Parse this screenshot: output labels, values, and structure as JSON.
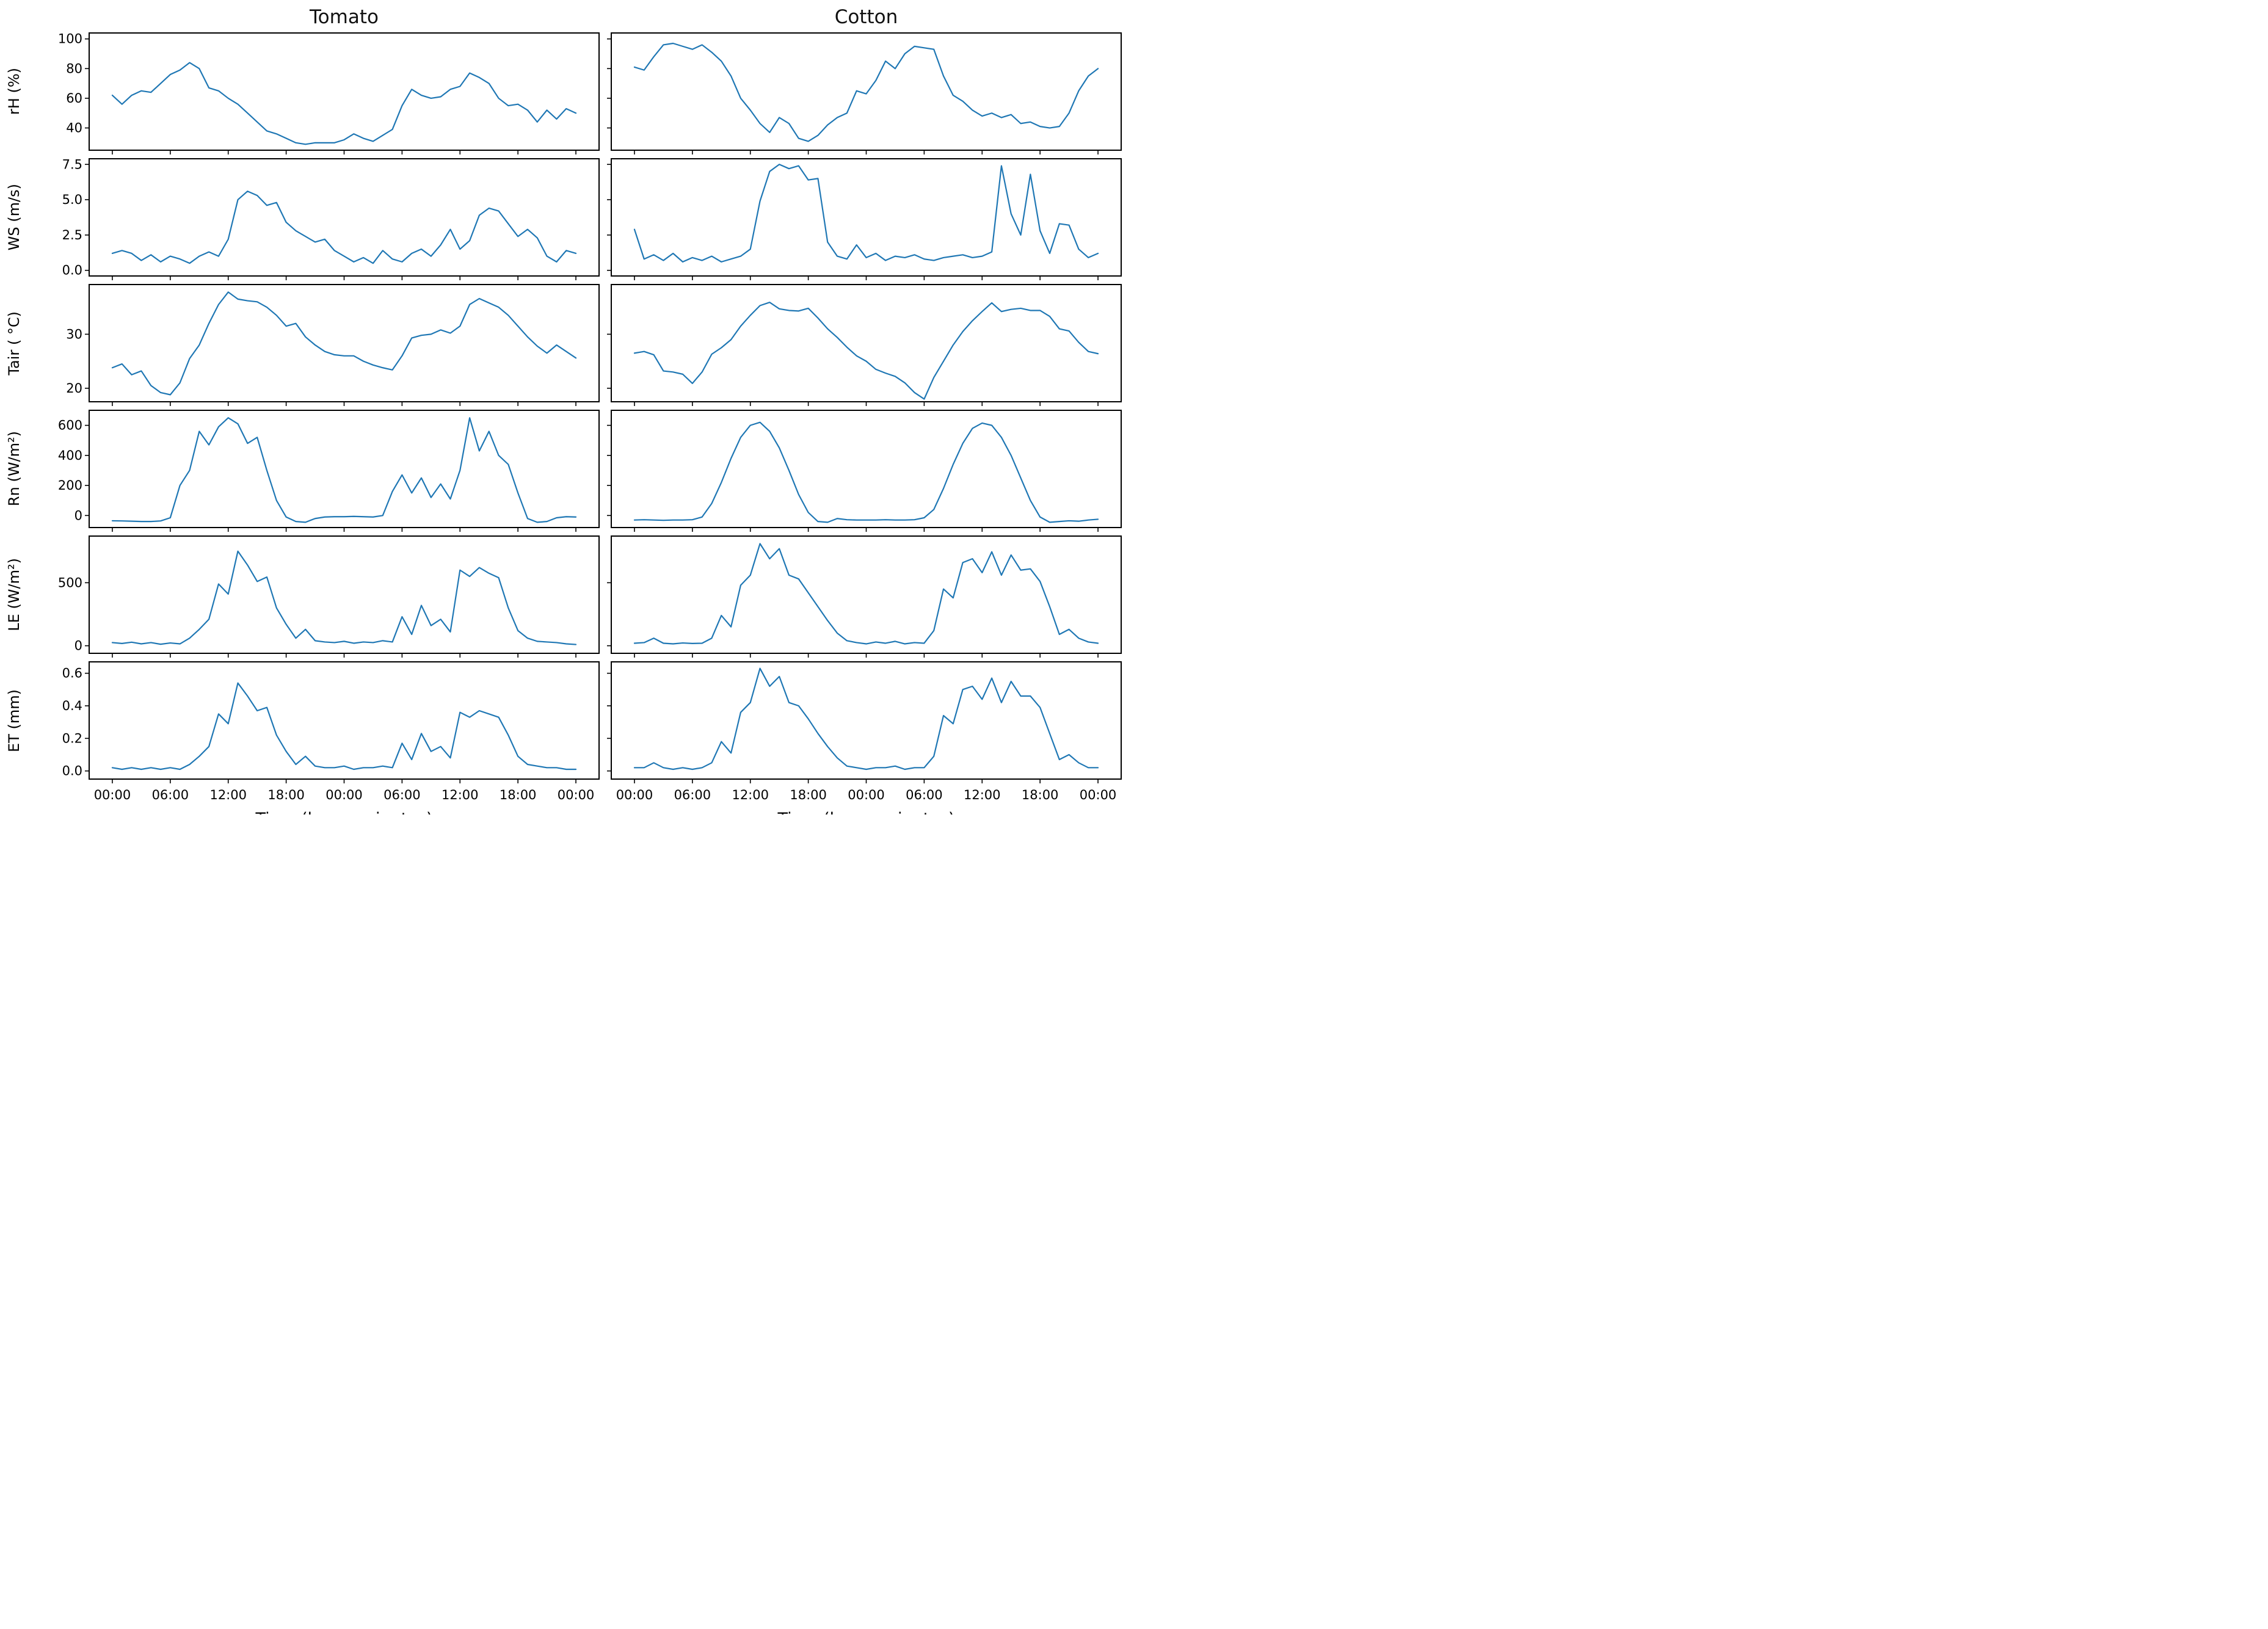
{
  "figure": {
    "column_titles": [
      "Tomato",
      "Cotton"
    ],
    "xlabel": "Time (hours:minutes)"
  },
  "chart_data": {
    "type": "line",
    "title": "",
    "columns": [
      "Tomato",
      "Cotton"
    ],
    "xlabel": "Time (hours:minutes)",
    "x_unit": "hours since first midnight (two consecutive days, hourly samples)",
    "x_start": 0,
    "x_step": 1,
    "n_points": 49,
    "x_tick_hours": [
      0,
      6,
      12,
      18,
      24,
      30,
      36,
      42,
      48
    ],
    "x_tick_labels": [
      "00:00",
      "06:00",
      "12:00",
      "18:00",
      "00:00",
      "06:00",
      "12:00",
      "18:00",
      "00:00"
    ],
    "line_color": "#1f77b4",
    "axes_color": "#000000",
    "grid": false,
    "legend": "none",
    "rows": [
      {
        "key": "rH",
        "ylabel": "rH (%)",
        "ylim": [
          25,
          104
        ],
        "yticks": [
          40,
          60,
          80,
          100
        ],
        "ytick_labels": [
          "40",
          "60",
          "80",
          "100"
        ],
        "series": {
          "Tomato": [
            62,
            56,
            62,
            65,
            64,
            70,
            76,
            79,
            84,
            80,
            67,
            65,
            60,
            56,
            50,
            44,
            38,
            36,
            33,
            30,
            29,
            30,
            30,
            30,
            32,
            36,
            33,
            31,
            35,
            39,
            55,
            66,
            62,
            60,
            61,
            66,
            68,
            77,
            74,
            70,
            60,
            55,
            56,
            52,
            44,
            52,
            46,
            53,
            50
          ],
          "Cotton": [
            81,
            79,
            88,
            96,
            97,
            95,
            93,
            96,
            91,
            85,
            75,
            60,
            52,
            43,
            37,
            47,
            43,
            33,
            31,
            35,
            42,
            47,
            50,
            65,
            63,
            72,
            85,
            80,
            90,
            95,
            94,
            93,
            75,
            62,
            58,
            52,
            48,
            50,
            47,
            49,
            43,
            44,
            41,
            40,
            41,
            50,
            65,
            75,
            80
          ]
        }
      },
      {
        "key": "WS",
        "ylabel": "WS (m/s)",
        "ylim": [
          -0.4,
          7.9
        ],
        "yticks": [
          0.0,
          2.5,
          5.0,
          7.5
        ],
        "ytick_labels": [
          "0.0",
          "2.5",
          "5.0",
          "7.5"
        ],
        "series": {
          "Tomato": [
            1.2,
            1.4,
            1.2,
            0.7,
            1.1,
            0.6,
            1.0,
            0.8,
            0.5,
            1.0,
            1.3,
            1.0,
            2.2,
            5.0,
            5.6,
            5.3,
            4.6,
            4.8,
            3.4,
            2.8,
            2.4,
            2.0,
            2.2,
            1.4,
            1.0,
            0.6,
            0.9,
            0.5,
            1.4,
            0.8,
            0.6,
            1.2,
            1.5,
            1.0,
            1.8,
            2.9,
            1.5,
            2.1,
            3.9,
            4.4,
            4.2,
            3.3,
            2.4,
            2.9,
            2.3,
            1.0,
            0.6,
            1.4,
            1.2
          ],
          "Cotton": [
            2.9,
            0.8,
            1.1,
            0.7,
            1.2,
            0.6,
            0.9,
            0.7,
            1.0,
            0.6,
            0.8,
            1.0,
            1.5,
            4.9,
            7.0,
            7.5,
            7.2,
            7.4,
            6.4,
            6.5,
            2.0,
            1.0,
            0.8,
            1.8,
            0.9,
            1.2,
            0.7,
            1.0,
            0.9,
            1.1,
            0.8,
            0.7,
            0.9,
            1.0,
            1.1,
            0.9,
            1.0,
            1.3,
            7.4,
            4.0,
            2.5,
            6.8,
            2.8,
            1.2,
            3.3,
            3.2,
            1.5,
            0.9,
            1.2
          ]
        }
      },
      {
        "key": "Tair",
        "ylabel": "Tair ( °C)",
        "ylim": [
          17.5,
          39.2
        ],
        "yticks": [
          20,
          30
        ],
        "ytick_labels": [
          "20",
          "30"
        ],
        "series": {
          "Tomato": [
            23.8,
            24.5,
            22.5,
            23.2,
            20.5,
            19.2,
            18.8,
            21.0,
            25.5,
            28.0,
            32.0,
            35.5,
            37.8,
            36.5,
            36.2,
            36.0,
            35.0,
            33.5,
            31.5,
            32.0,
            29.5,
            28.0,
            26.8,
            26.2,
            26.0,
            26.0,
            25.0,
            24.3,
            23.8,
            23.4,
            26.0,
            29.3,
            29.8,
            30.0,
            30.8,
            30.2,
            31.5,
            35.5,
            36.6,
            35.8,
            35.0,
            33.5,
            31.5,
            29.5,
            27.8,
            26.5,
            28.0,
            26.8,
            25.6
          ],
          "Cotton": [
            26.5,
            26.8,
            26.2,
            23.2,
            23.0,
            22.6,
            20.9,
            23.0,
            26.3,
            27.5,
            29.0,
            31.5,
            33.5,
            35.3,
            35.9,
            34.7,
            34.4,
            34.3,
            34.8,
            33.0,
            31.0,
            29.4,
            27.6,
            26.0,
            25.0,
            23.5,
            22.8,
            22.2,
            21.0,
            19.2,
            18.0,
            22.0,
            25.0,
            28.0,
            30.5,
            32.5,
            34.2,
            35.8,
            34.2,
            34.6,
            34.8,
            34.4,
            34.4,
            33.3,
            31.0,
            30.6,
            28.5,
            26.8,
            26.4
          ]
        }
      },
      {
        "key": "Rn",
        "ylabel": "Rn (W/m²)",
        "ylim": [
          -80,
          700
        ],
        "yticks": [
          0,
          200,
          400,
          600
        ],
        "ytick_labels": [
          "0",
          "200",
          "400",
          "600"
        ],
        "series": {
          "Tomato": [
            -35,
            -36,
            -38,
            -40,
            -40,
            -36,
            -15,
            200,
            300,
            560,
            470,
            590,
            650,
            610,
            480,
            520,
            300,
            100,
            -10,
            -40,
            -45,
            -20,
            -10,
            -8,
            -8,
            -6,
            -8,
            -10,
            0,
            160,
            270,
            150,
            250,
            120,
            210,
            110,
            300,
            650,
            430,
            560,
            400,
            340,
            150,
            -20,
            -45,
            -40,
            -15,
            -8,
            -10
          ],
          "Cotton": [
            -30,
            -28,
            -30,
            -32,
            -30,
            -30,
            -28,
            -10,
            80,
            220,
            380,
            520,
            600,
            620,
            560,
            450,
            300,
            140,
            20,
            -40,
            -45,
            -20,
            -28,
            -30,
            -30,
            -30,
            -28,
            -30,
            -30,
            -28,
            -15,
            40,
            180,
            340,
            480,
            580,
            615,
            600,
            520,
            400,
            250,
            100,
            -10,
            -45,
            -40,
            -35,
            -38,
            -30,
            -25
          ]
        }
      },
      {
        "key": "LE",
        "ylabel": "LE (W/m²)",
        "ylim": [
          -60,
          870
        ],
        "yticks": [
          0,
          500
        ],
        "ytick_labels": [
          "0",
          "500"
        ],
        "series": {
          "Tomato": [
            25,
            18,
            28,
            15,
            25,
            12,
            22,
            15,
            60,
            130,
            210,
            490,
            410,
            750,
            640,
            510,
            545,
            300,
            170,
            60,
            130,
            40,
            30,
            25,
            35,
            20,
            30,
            25,
            40,
            30,
            230,
            90,
            320,
            160,
            210,
            110,
            600,
            550,
            620,
            575,
            540,
            300,
            120,
            60,
            35,
            30,
            25,
            15,
            10
          ],
          "Cotton": [
            20,
            25,
            60,
            20,
            15,
            22,
            18,
            20,
            60,
            240,
            150,
            480,
            560,
            810,
            690,
            770,
            560,
            530,
            420,
            310,
            200,
            100,
            40,
            25,
            15,
            30,
            20,
            35,
            15,
            25,
            20,
            120,
            450,
            380,
            660,
            690,
            580,
            745,
            560,
            720,
            600,
            610,
            510,
            310,
            90,
            130,
            60,
            30,
            20
          ]
        }
      },
      {
        "key": "ET",
        "ylabel": "ET (mm)",
        "ylim": [
          -0.05,
          0.67
        ],
        "yticks": [
          0.0,
          0.2,
          0.4,
          0.6
        ],
        "ytick_labels": [
          "0.0",
          "0.2",
          "0.4",
          "0.6"
        ],
        "series": {
          "Tomato": [
            0.02,
            0.01,
            0.02,
            0.01,
            0.02,
            0.01,
            0.02,
            0.01,
            0.04,
            0.09,
            0.15,
            0.35,
            0.29,
            0.54,
            0.46,
            0.37,
            0.39,
            0.22,
            0.12,
            0.04,
            0.09,
            0.03,
            0.02,
            0.02,
            0.03,
            0.01,
            0.02,
            0.02,
            0.03,
            0.02,
            0.17,
            0.07,
            0.23,
            0.12,
            0.15,
            0.08,
            0.36,
            0.33,
            0.37,
            0.35,
            0.33,
            0.22,
            0.09,
            0.04,
            0.03,
            0.02,
            0.02,
            0.01,
            0.01
          ],
          "Cotton": [
            0.02,
            0.02,
            0.05,
            0.02,
            0.01,
            0.02,
            0.01,
            0.02,
            0.05,
            0.18,
            0.11,
            0.36,
            0.42,
            0.63,
            0.52,
            0.58,
            0.42,
            0.4,
            0.32,
            0.23,
            0.15,
            0.08,
            0.03,
            0.02,
            0.01,
            0.02,
            0.02,
            0.03,
            0.01,
            0.02,
            0.02,
            0.09,
            0.34,
            0.29,
            0.5,
            0.52,
            0.44,
            0.57,
            0.42,
            0.55,
            0.46,
            0.46,
            0.39,
            0.23,
            0.07,
            0.1,
            0.05,
            0.02,
            0.02
          ]
        }
      }
    ]
  }
}
